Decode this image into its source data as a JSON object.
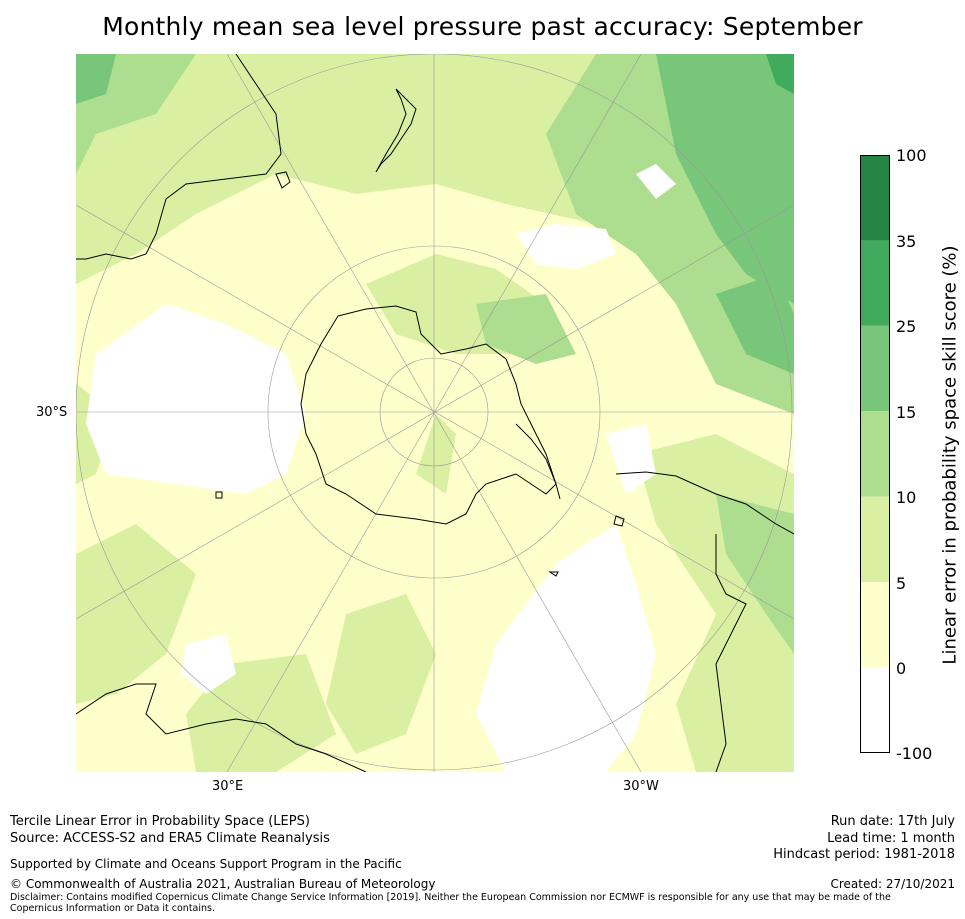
{
  "title": "Monthly mean sea level pressure past accuracy: September",
  "map": {
    "projection": "south-polar-stereographic",
    "lat_labels": [
      "30°S"
    ],
    "lon_labels": [
      "30°E",
      "30°W"
    ],
    "colors": {
      "land_outline": "#000000",
      "gridline": "#999999",
      "class_neg100_0": "#ffffff",
      "class_0_5": "#ffffcc",
      "class_5_10": "#d9f0a3",
      "class_10_15": "#addd8e",
      "class_15_25": "#78c679",
      "class_25_35": "#41ab5d",
      "class_35_100": "#238443"
    }
  },
  "colorbar": {
    "label": "Linear error in probability space skill score (%)",
    "ticks": [
      "100",
      "35",
      "25",
      "15",
      "10",
      "5",
      "0",
      "-100"
    ],
    "bins": [
      {
        "range": "35 to 100",
        "color": "#238443"
      },
      {
        "range": "25 to 35",
        "color": "#41ab5d"
      },
      {
        "range": "15 to 25",
        "color": "#78c679"
      },
      {
        "range": "10 to 15",
        "color": "#addd8e"
      },
      {
        "range": "5 to 10",
        "color": "#d9f0a3"
      },
      {
        "range": "0 to 5",
        "color": "#ffffcc"
      },
      {
        "range": "-100 to 0",
        "color": "#ffffff"
      }
    ]
  },
  "footer": {
    "line1": "Tercile Linear Error in Probability Space (LEPS)",
    "line2": "Source: ACCESS-S2 and ERA5 Climate Reanalysis",
    "supported": "Supported by Climate and Oceans Support Program in the Pacific",
    "copyright": "© Commonwealth of Australia 2021, Australian Bureau of Meteorology",
    "disclaimer": "Disclaimer: Contains modified Copernicus Climate Change Service Information [2019]. Neither the European Commission nor ECMWF is responsible for any use that may be made of the Copernicus Information or Data it contains.",
    "run_date": "Run date: 17th July",
    "lead_time": "Lead time: 1 month",
    "hindcast": "Hindcast period: 1981-2018",
    "created": "Created: 27/10/2021"
  }
}
